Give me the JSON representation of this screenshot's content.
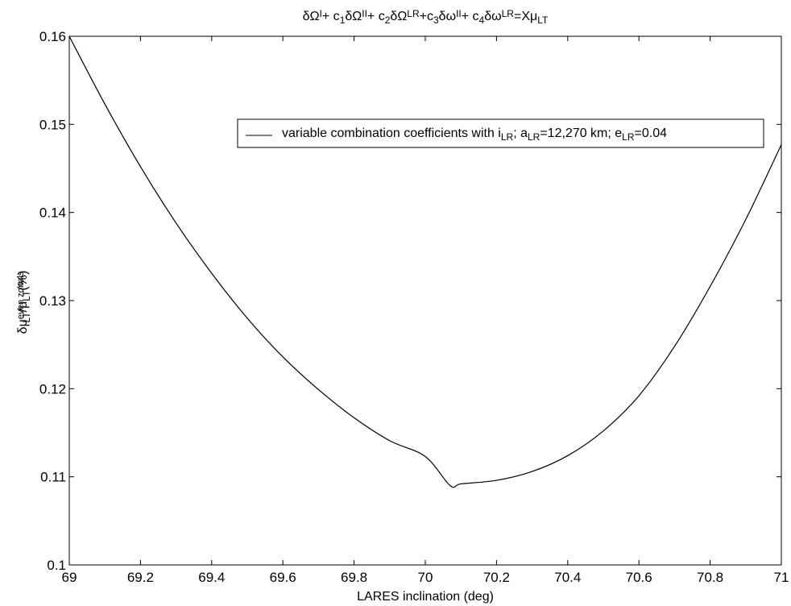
{
  "chart_data": {
    "type": "line",
    "title": {
      "segments": [
        {
          "t": "δΩ"
        },
        {
          "t": "I",
          "s": "sup"
        },
        {
          "t": "+ c"
        },
        {
          "t": "1",
          "s": "sub"
        },
        {
          "t": "δΩ"
        },
        {
          "t": "II",
          "s": "sup"
        },
        {
          "t": "+ c"
        },
        {
          "t": "2",
          "s": "sub"
        },
        {
          "t": "δΩ"
        },
        {
          "t": "LR",
          "s": "sup"
        },
        {
          "t": "+c"
        },
        {
          "t": "3",
          "s": "sub"
        },
        {
          "t": "δω"
        },
        {
          "t": "II",
          "s": "sup"
        },
        {
          "t": "+ c"
        },
        {
          "t": "4",
          "s": "sub"
        },
        {
          "t": "δω"
        },
        {
          "t": "LR",
          "s": "sup"
        },
        {
          "t": "=Xμ"
        },
        {
          "t": "LT",
          "s": "sub"
        }
      ]
    },
    "xlabel": "LARES inclination (deg)",
    "ylabel": {
      "segments": [
        {
          "t": "δμ"
        },
        {
          "t": "even zonals",
          "s": "supsub",
          "sub": "LT"
        },
        {
          "t": "/μ"
        },
        {
          "t": "LT",
          "s": "sub"
        },
        {
          "t": "(%)"
        }
      ]
    },
    "xlim": [
      69,
      71
    ],
    "ylim": [
      0.1,
      0.16
    ],
    "x_ticks": [
      69,
      69.2,
      69.4,
      69.6,
      69.8,
      70,
      70.2,
      70.4,
      70.6,
      70.8,
      71
    ],
    "x_tick_labels": [
      "69",
      "69.2",
      "69.4",
      "69.6",
      "69.8",
      "70",
      "70.2",
      "70.4",
      "70.6",
      "70.8",
      "71"
    ],
    "y_ticks": [
      0.1,
      0.11,
      0.12,
      0.13,
      0.14,
      0.15,
      0.16
    ],
    "y_tick_labels": [
      "0.1",
      "0.11",
      "0.12",
      "0.13",
      "0.14",
      "0.15",
      "0.16"
    ],
    "grid": false,
    "legend_position": "top-right",
    "legend": {
      "segments": [
        {
          "t": "variable combination coefficients with i"
        },
        {
          "t": "LR",
          "s": "sub"
        },
        {
          "t": "; a"
        },
        {
          "t": "LR",
          "s": "sub"
        },
        {
          "t": "=12,270 km; e"
        },
        {
          "t": "LR",
          "s": "sub"
        },
        {
          "t": "=0.04"
        }
      ]
    },
    "series": [
      {
        "color": "#000000",
        "x": [
          69.0,
          69.1,
          69.2,
          69.3,
          69.4,
          69.5,
          69.6,
          69.7,
          69.8,
          69.9,
          70.0,
          70.07,
          70.1,
          70.2,
          70.3,
          70.4,
          70.5,
          70.6,
          70.7,
          70.8,
          70.9,
          71.0
        ],
        "y": [
          0.16,
          0.1523,
          0.1452,
          0.1388,
          0.1331,
          0.128,
          0.1236,
          0.1199,
          0.1167,
          0.1141,
          0.1123,
          0.109,
          0.1092,
          0.1096,
          0.1106,
          0.1124,
          0.1152,
          0.1192,
          0.1248,
          0.1316,
          0.1392,
          0.1477
        ]
      }
    ]
  }
}
